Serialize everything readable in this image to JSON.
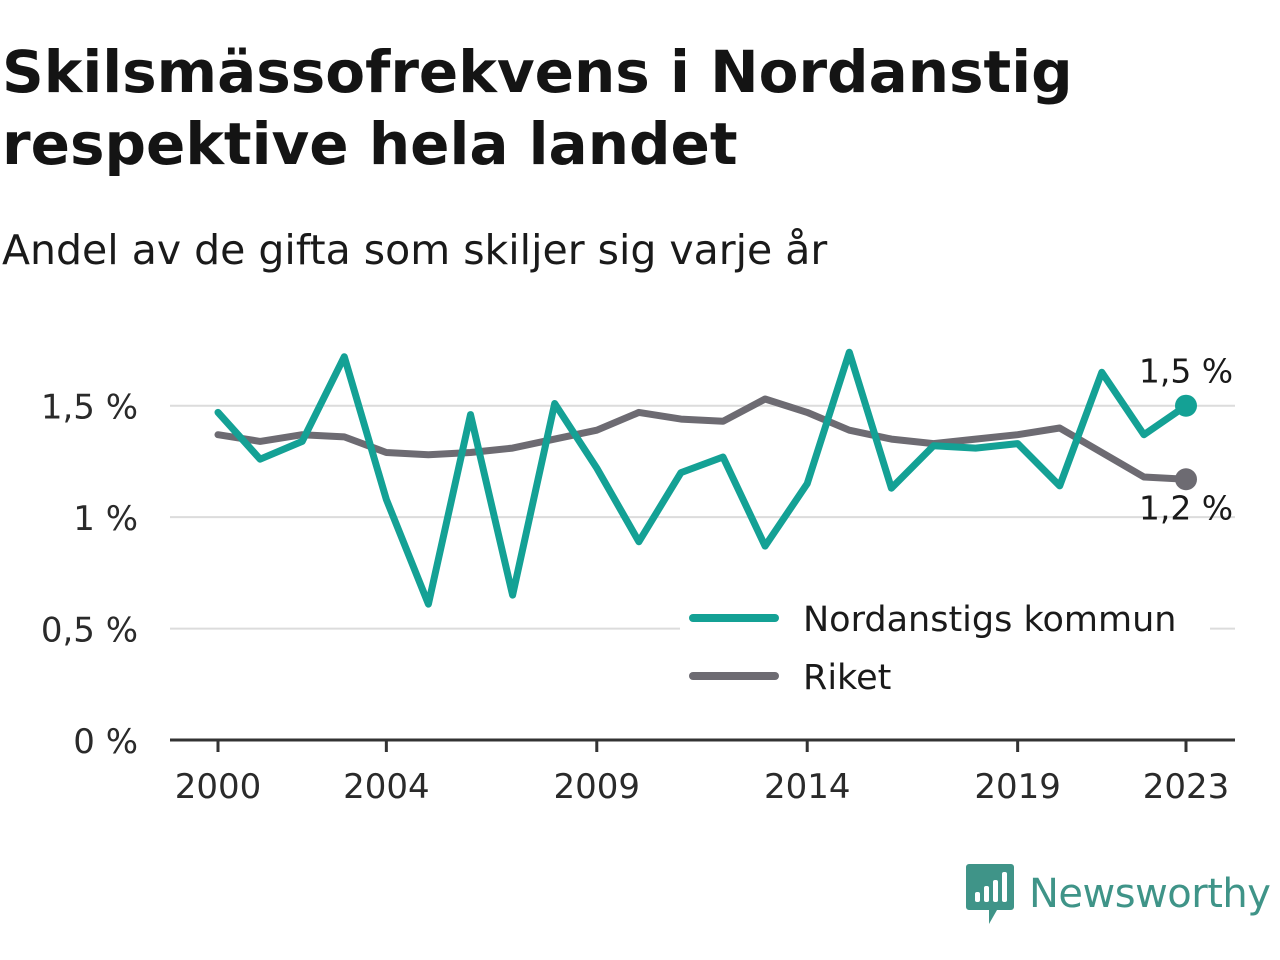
{
  "title": "Skilsmässofrekvens i Nordanstig respektive hela landet",
  "subtitle": "Andel av de gifta som skiljer sig varje år",
  "brand": {
    "name": "Newsworthy",
    "icon": "newsworthy-logo-icon",
    "color": "#3f9488"
  },
  "chart_data": {
    "type": "line",
    "title": "Skilsmässofrekvens i Nordanstig respektive hela landet",
    "subtitle": "Andel av de gifta som skiljer sig varje år",
    "xlabel": "",
    "ylabel": "",
    "x": [
      2000,
      2001,
      2002,
      2003,
      2004,
      2005,
      2006,
      2007,
      2008,
      2009,
      2010,
      2011,
      2012,
      2013,
      2014,
      2015,
      2016,
      2017,
      2018,
      2019,
      2020,
      2021,
      2022,
      2023
    ],
    "x_ticks": [
      2000,
      2004,
      2009,
      2014,
      2019,
      2023
    ],
    "x_tick_labels": [
      "2000",
      "2004",
      "2009",
      "2014",
      "2019",
      "2023"
    ],
    "ylim": [
      0,
      1.75
    ],
    "y_ticks": [
      0,
      0.5,
      1,
      1.5
    ],
    "y_tick_labels": [
      "0 %",
      "0,5 %",
      "1 %",
      "1,5 %"
    ],
    "grid": true,
    "legend_position": "bottom-right",
    "series": [
      {
        "name": "Nordanstigs kommun",
        "color": "#14a195",
        "values": [
          1.47,
          1.26,
          1.34,
          1.72,
          1.08,
          0.61,
          1.46,
          0.65,
          1.51,
          1.22,
          0.89,
          1.2,
          1.27,
          0.87,
          1.15,
          1.74,
          1.13,
          1.32,
          1.31,
          1.33,
          1.14,
          1.65,
          1.37,
          1.5
        ],
        "end_label": "1,5 %"
      },
      {
        "name": "Riket",
        "color": "#6d6b72",
        "values": [
          1.37,
          1.34,
          1.37,
          1.36,
          1.29,
          1.28,
          1.29,
          1.31,
          1.35,
          1.39,
          1.47,
          1.44,
          1.43,
          1.53,
          1.47,
          1.39,
          1.35,
          1.33,
          1.35,
          1.37,
          1.4,
          1.29,
          1.18,
          1.17
        ],
        "end_label": "1,2 %"
      }
    ]
  }
}
